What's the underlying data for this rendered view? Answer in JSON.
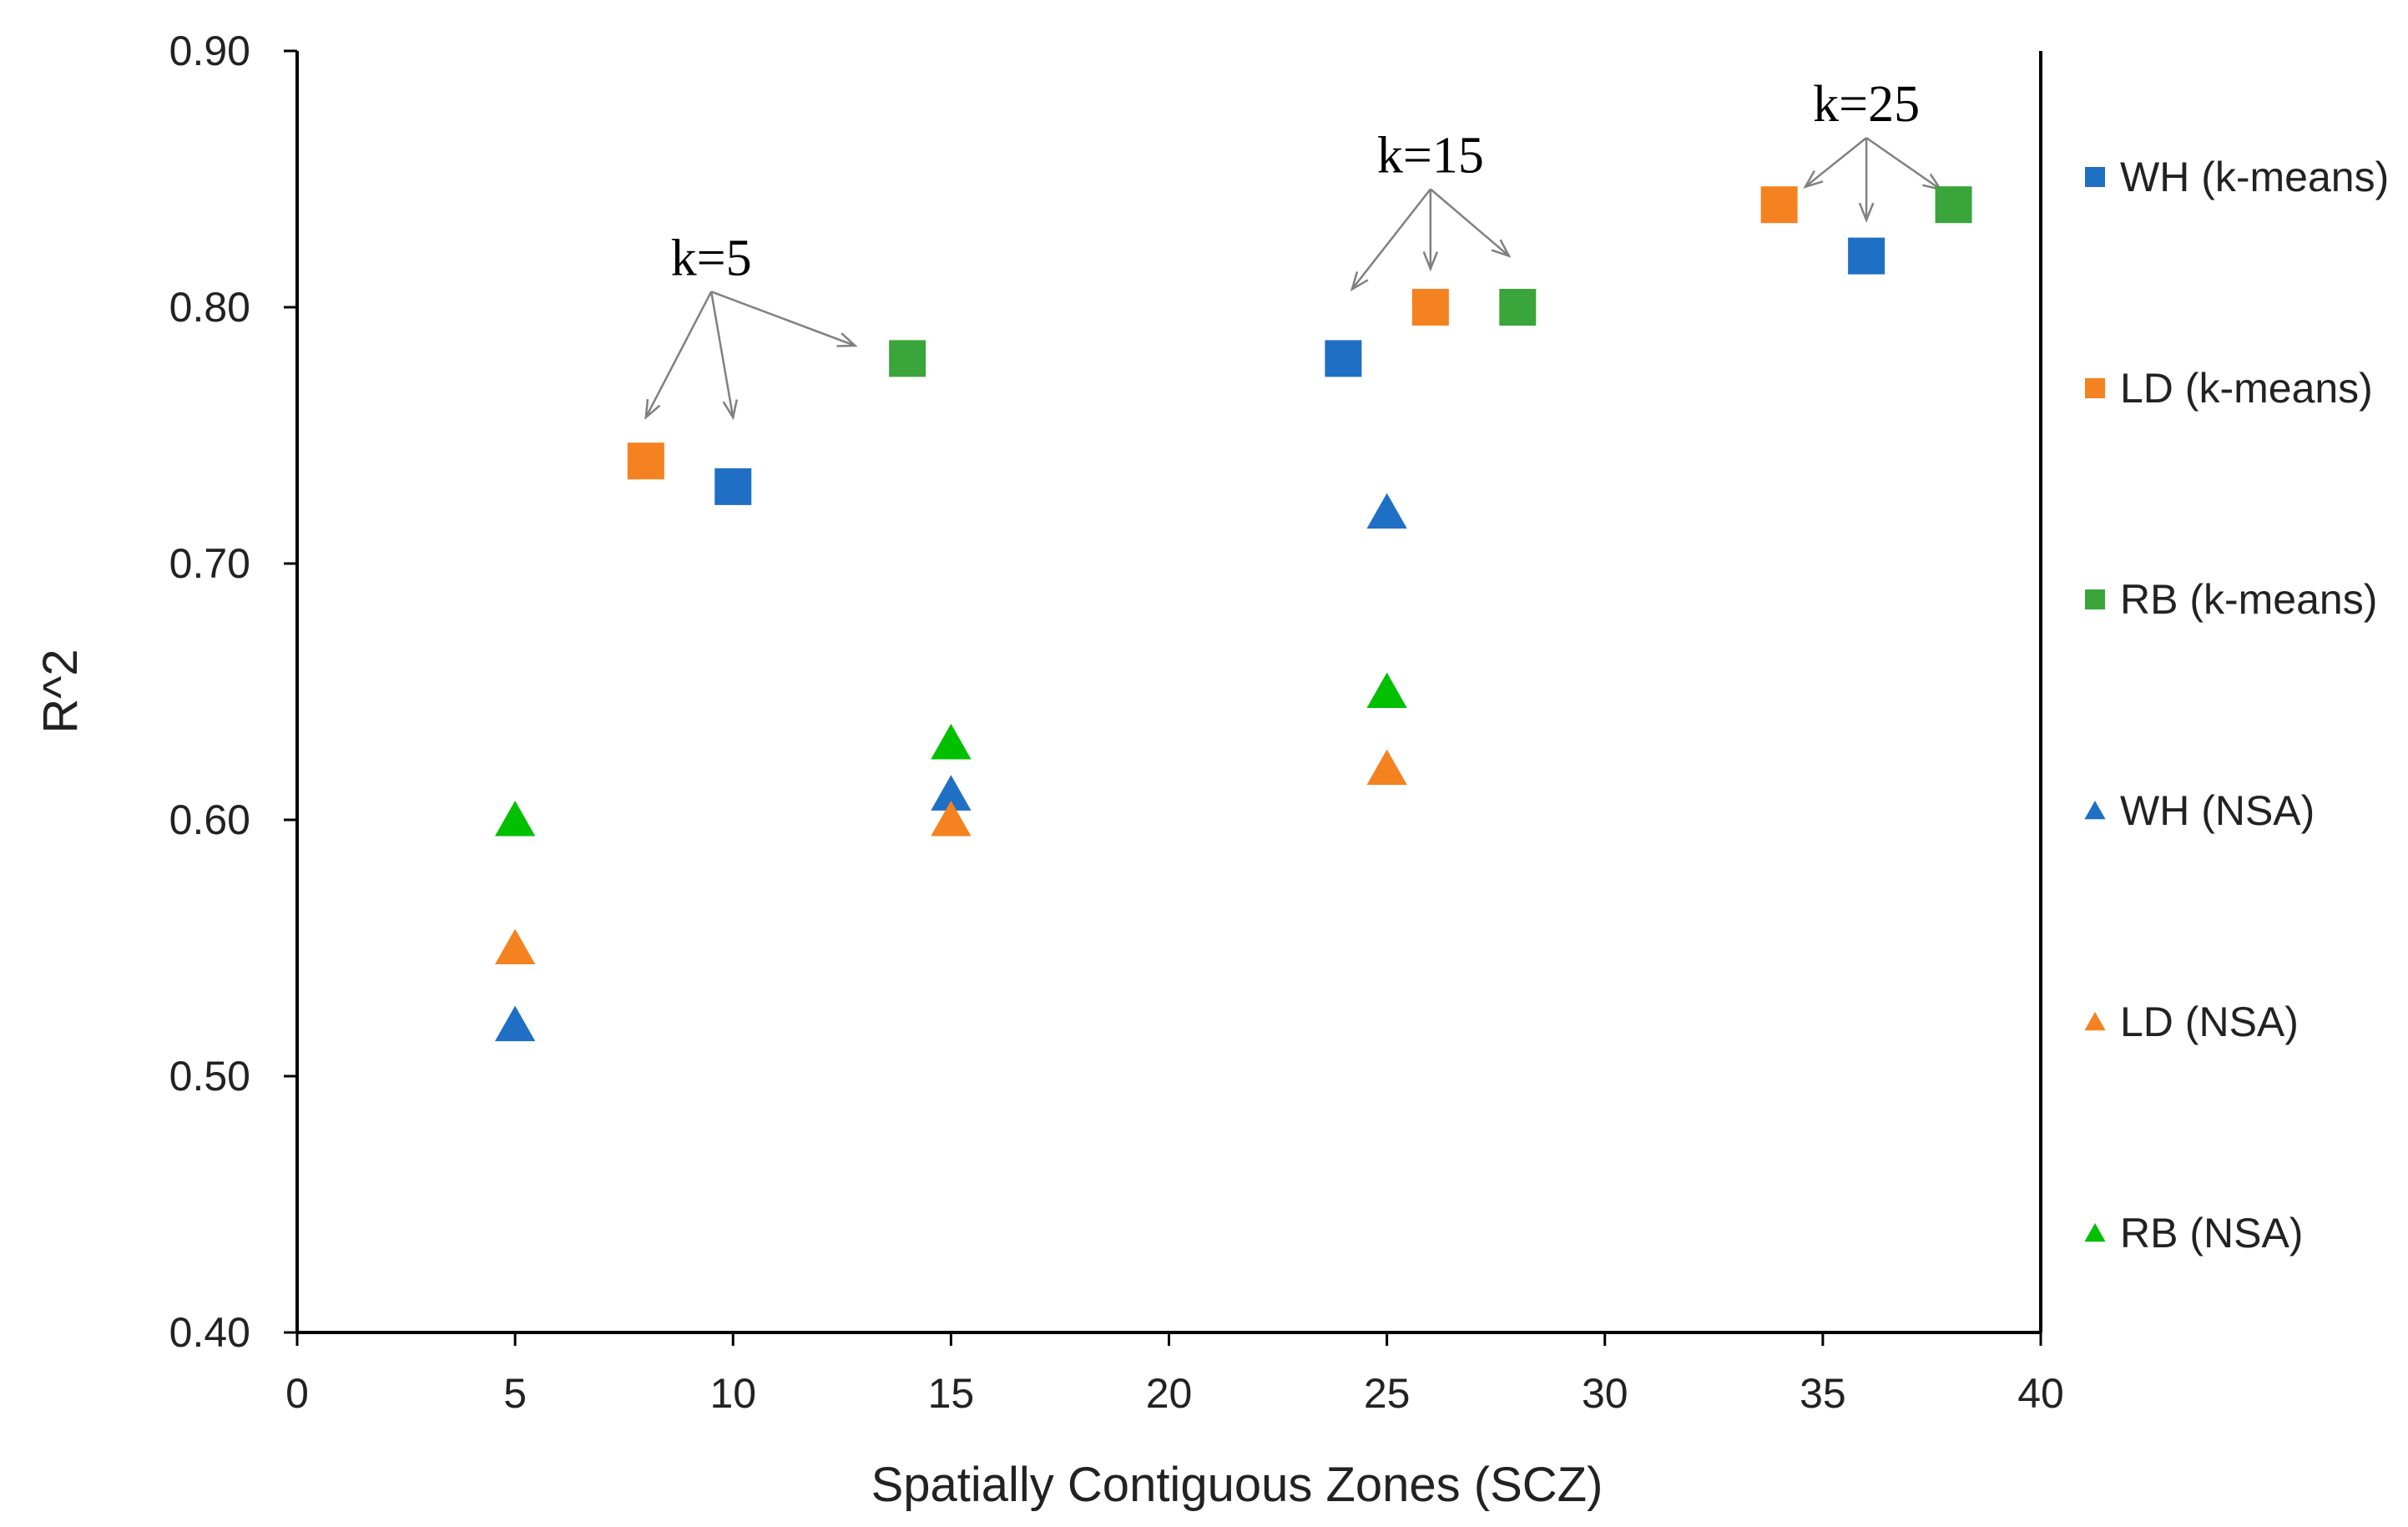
{
  "chart_data": {
    "type": "scatter",
    "title": "",
    "xlabel": "Spatially Contiguous Zones (SCZ)",
    "ylabel": "R^2",
    "xlim": [
      0,
      40
    ],
    "ylim": [
      0.4,
      0.9
    ],
    "xticks": [
      0,
      5,
      10,
      15,
      20,
      25,
      30,
      35,
      40
    ],
    "xtick_labels": [
      "0",
      "5",
      "10",
      "15",
      "20",
      "25",
      "30",
      "35",
      "40"
    ],
    "yticks": [
      0.4,
      0.5,
      0.6,
      0.7,
      0.8,
      0.9
    ],
    "ytick_labels": [
      "0.40",
      "0.50",
      "0.60",
      "0.70",
      "0.80",
      "0.90"
    ],
    "grid": false,
    "legend_position": "right",
    "series": [
      {
        "name": "WH (k-means)",
        "marker": "square",
        "color": "#1f6fc5",
        "points": [
          {
            "x": 10,
            "y": 0.73
          },
          {
            "x": 24,
            "y": 0.78
          },
          {
            "x": 36,
            "y": 0.82
          }
        ]
      },
      {
        "name": "LD (k-means)",
        "marker": "square",
        "color": "#f58220",
        "points": [
          {
            "x": 8,
            "y": 0.74
          },
          {
            "x": 26,
            "y": 0.8
          },
          {
            "x": 34,
            "y": 0.84
          }
        ]
      },
      {
        "name": "RB (k-means)",
        "marker": "square",
        "color": "#3aa53a",
        "points": [
          {
            "x": 14,
            "y": 0.78
          },
          {
            "x": 28,
            "y": 0.8
          },
          {
            "x": 38,
            "y": 0.84
          }
        ]
      },
      {
        "name": "WH (NSA)",
        "marker": "triangle",
        "color": "#1f6fc5",
        "points": [
          {
            "x": 5,
            "y": 0.52
          },
          {
            "x": 15,
            "y": 0.61
          },
          {
            "x": 25,
            "y": 0.72
          }
        ]
      },
      {
        "name": "LD (NSA)",
        "marker": "triangle",
        "color": "#f58220",
        "points": [
          {
            "x": 5,
            "y": 0.55
          },
          {
            "x": 15,
            "y": 0.6
          },
          {
            "x": 25,
            "y": 0.62
          }
        ]
      },
      {
        "name": "RB (NSA)",
        "marker": "triangle",
        "color": "#00c000",
        "points": [
          {
            "x": 5,
            "y": 0.6
          },
          {
            "x": 15,
            "y": 0.63
          },
          {
            "x": 25,
            "y": 0.65
          }
        ]
      }
    ],
    "annotations": [
      {
        "text": "k=5",
        "x": 9.5,
        "y": 0.81,
        "targets": [
          {
            "x": 8,
            "y": 0.757
          },
          {
            "x": 10,
            "y": 0.757
          },
          {
            "x": 12.8,
            "y": 0.785
          }
        ]
      },
      {
        "text": "k=15",
        "x": 26,
        "y": 0.85,
        "targets": [
          {
            "x": 24.2,
            "y": 0.807
          },
          {
            "x": 26,
            "y": 0.815
          },
          {
            "x": 27.8,
            "y": 0.82
          }
        ]
      },
      {
        "text": "k=25",
        "x": 36,
        "y": 0.87,
        "targets": [
          {
            "x": 34.6,
            "y": 0.847
          },
          {
            "x": 36,
            "y": 0.834
          },
          {
            "x": 37.7,
            "y": 0.846
          }
        ]
      }
    ]
  }
}
